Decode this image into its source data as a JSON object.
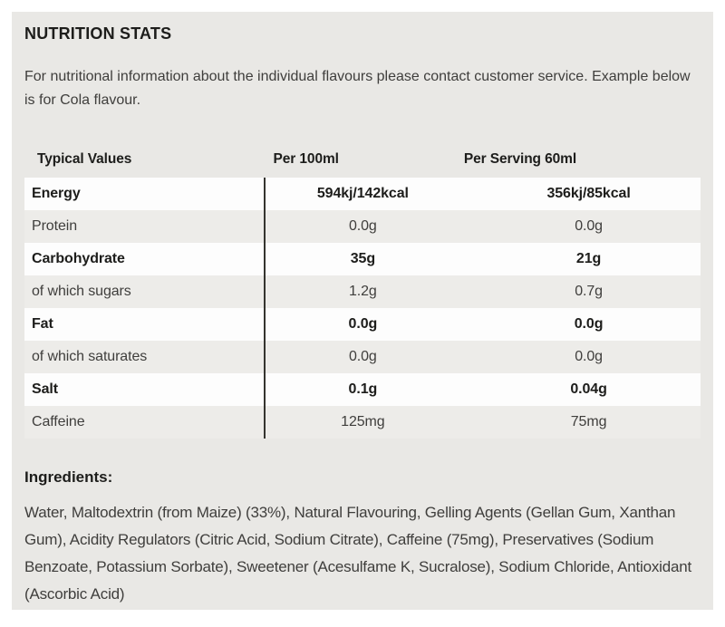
{
  "header": {
    "title": "NUTRITION STATS"
  },
  "intro_text": "For nutritional information about the individual flavours please contact customer service. Example below is for Cola flavour.",
  "table": {
    "columns": [
      "Typical Values",
      "Per 100ml",
      "Per Serving 60ml"
    ],
    "rows": [
      {
        "label": "Energy",
        "per_100ml": "594kj/142kcal",
        "per_serving": "356kj/85kcal",
        "bold": true
      },
      {
        "label": "Protein",
        "per_100ml": "0.0g",
        "per_serving": "0.0g",
        "bold": false
      },
      {
        "label": "Carbohydrate",
        "per_100ml": "35g",
        "per_serving": "21g",
        "bold": true
      },
      {
        "label": "of which sugars",
        "per_100ml": "1.2g",
        "per_serving": "0.7g",
        "bold": false
      },
      {
        "label": "Fat",
        "per_100ml": "0.0g",
        "per_serving": "0.0g",
        "bold": true
      },
      {
        "label": "of which saturates",
        "per_100ml": "0.0g",
        "per_serving": "0.0g",
        "bold": false
      },
      {
        "label": "Salt",
        "per_100ml": "0.1g",
        "per_serving": "0.04g",
        "bold": true
      },
      {
        "label": "Caffeine",
        "per_100ml": "125mg",
        "per_serving": "75mg",
        "bold": false
      }
    ]
  },
  "ingredients": {
    "title": "Ingredients:",
    "text": "Water, Maltodextrin (from Maize) (33%), Natural Flavouring, Gelling Agents (Gellan Gum, Xanthan Gum), Acidity Regulators (Citric Acid, Sodium Citrate), Caffeine (75mg), Preservatives (Sodium Benzoate, Potassium Sorbate), Sweetener (Acesulfame K, Sucralose), Sodium Chloride, Antioxidant (Ascorbic Acid)"
  },
  "colors": {
    "panel_bg": "#e9e8e5",
    "row_bg": "#fdfdfd",
    "row_alt_bg": "#edece9",
    "divider": "#35342f",
    "text_dark": "#1d1d1b",
    "text_reg": "#3f3e3c"
  }
}
